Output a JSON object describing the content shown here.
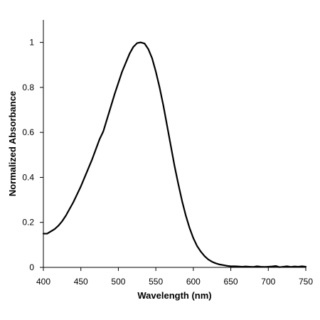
{
  "chart_data": {
    "type": "line",
    "title": "",
    "xlabel": "Wavelength (nm)",
    "ylabel": "Normalized Absorbance",
    "xlim": [
      400,
      750
    ],
    "ylim": [
      0,
      1.1
    ],
    "xticks": [
      400,
      450,
      500,
      550,
      600,
      650,
      700,
      750
    ],
    "yticks": [
      0,
      0.2,
      0.4,
      0.6,
      0.8,
      1
    ],
    "ytick_labels": [
      "0",
      "0.2",
      "0.4",
      "0.6",
      "0.8",
      "1"
    ],
    "grid": false,
    "series": [
      {
        "x": [
          400,
          405,
          410,
          415,
          420,
          425,
          430,
          435,
          440,
          445,
          450,
          455,
          460,
          465,
          470,
          475,
          480,
          485,
          490,
          495,
          500,
          505,
          510,
          515,
          520,
          525,
          530,
          535,
          540,
          545,
          550,
          555,
          560,
          565,
          570,
          575,
          580,
          585,
          590,
          595,
          600,
          605,
          610,
          615,
          620,
          625,
          630,
          635,
          640,
          645,
          650,
          655,
          660,
          665,
          670,
          675,
          680,
          685,
          690,
          695,
          700,
          705,
          710,
          715,
          720,
          725,
          730,
          735,
          740,
          745,
          750
        ],
        "y": [
          0.15,
          0.15,
          0.16,
          0.17,
          0.185,
          0.205,
          0.23,
          0.26,
          0.29,
          0.325,
          0.36,
          0.4,
          0.44,
          0.48,
          0.525,
          0.57,
          0.605,
          0.66,
          0.715,
          0.77,
          0.82,
          0.87,
          0.91,
          0.95,
          0.98,
          0.997,
          1.0,
          0.995,
          0.97,
          0.93,
          0.87,
          0.8,
          0.72,
          0.63,
          0.54,
          0.45,
          0.37,
          0.295,
          0.23,
          0.175,
          0.13,
          0.095,
          0.07,
          0.05,
          0.035,
          0.025,
          0.018,
          0.013,
          0.01,
          0.007,
          0.005,
          0.005,
          0.004,
          0.003,
          0.004,
          0.003,
          0.002,
          0.005,
          0.003,
          0.002,
          0.003,
          0.004,
          0.006,
          0.001,
          0.003,
          0.005,
          0.002,
          0.004,
          0.003,
          0.005,
          0.003
        ]
      }
    ]
  }
}
